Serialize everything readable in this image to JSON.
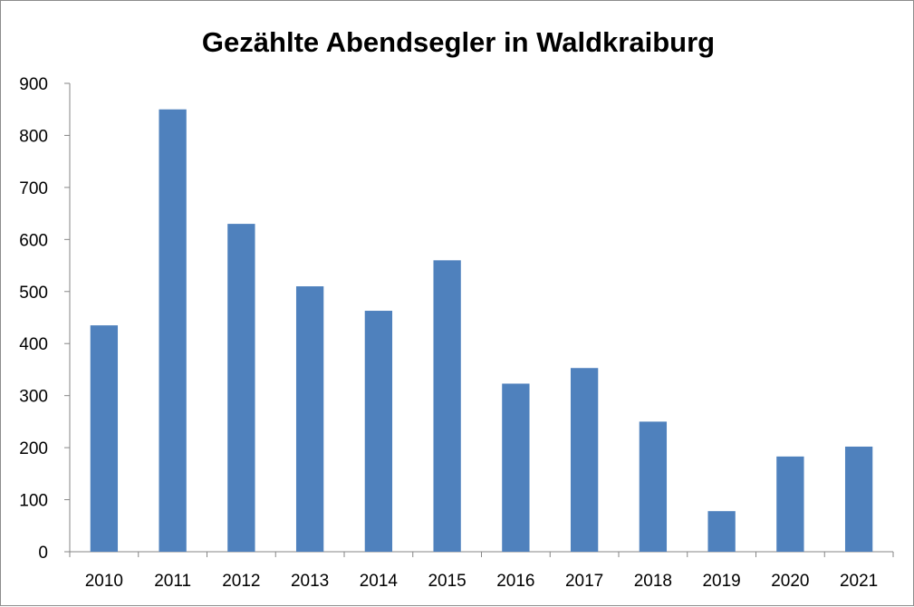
{
  "chart_data": {
    "type": "bar",
    "title": "Gezählte Abendsegler in Waldkraiburg",
    "xlabel": "",
    "ylabel": "",
    "categories": [
      "2010",
      "2011",
      "2012",
      "2013",
      "2014",
      "2015",
      "2016",
      "2017",
      "2018",
      "2019",
      "2020",
      "2021"
    ],
    "values": [
      435,
      850,
      630,
      510,
      463,
      560,
      323,
      353,
      250,
      78,
      183,
      202
    ],
    "ylim": [
      0,
      900
    ],
    "yticks": [
      0,
      100,
      200,
      300,
      400,
      500,
      600,
      700,
      800,
      900
    ],
    "grid": false,
    "legend": "none",
    "bar_color": "#4f81bd",
    "axis_color": "#868686"
  }
}
